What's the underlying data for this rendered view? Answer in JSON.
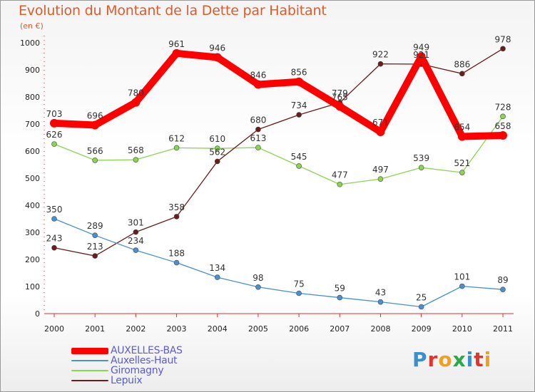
{
  "title": "Evolution du Montant de la Dette par Habitant",
  "subtitle": "(en €)",
  "logo": "Proxiti",
  "chart_data": {
    "type": "line",
    "x": [
      "2000",
      "2001",
      "2002",
      "2003",
      "2004",
      "2005",
      "2006",
      "2007",
      "2008",
      "2009",
      "2010",
      "2011"
    ],
    "ylim": [
      0,
      1000
    ],
    "yticks": [
      0,
      100,
      200,
      300,
      400,
      500,
      600,
      700,
      800,
      900,
      1000
    ],
    "grid": false,
    "legend_position": "bottom-left",
    "series": [
      {
        "name": "AUXELLES-BAS",
        "color": "#ff0000",
        "values": [
          703,
          696,
          780,
          961,
          946,
          846,
          856,
          765,
          671,
          949,
          654,
          658
        ]
      },
      {
        "name": "Auxelles-Haut",
        "color": "#4a90d0",
        "values": [
          350,
          289,
          234,
          188,
          134,
          98,
          75,
          59,
          43,
          25,
          101,
          89
        ]
      },
      {
        "name": "Giromagny",
        "color": "#88d64e",
        "values": [
          626,
          566,
          568,
          612,
          610,
          613,
          545,
          477,
          497,
          539,
          521,
          728
        ]
      },
      {
        "name": "Lepuix",
        "color": "#6b1c1c",
        "values": [
          243,
          213,
          301,
          358,
          562,
          680,
          734,
          779,
          922,
          921,
          886,
          978
        ]
      }
    ]
  }
}
